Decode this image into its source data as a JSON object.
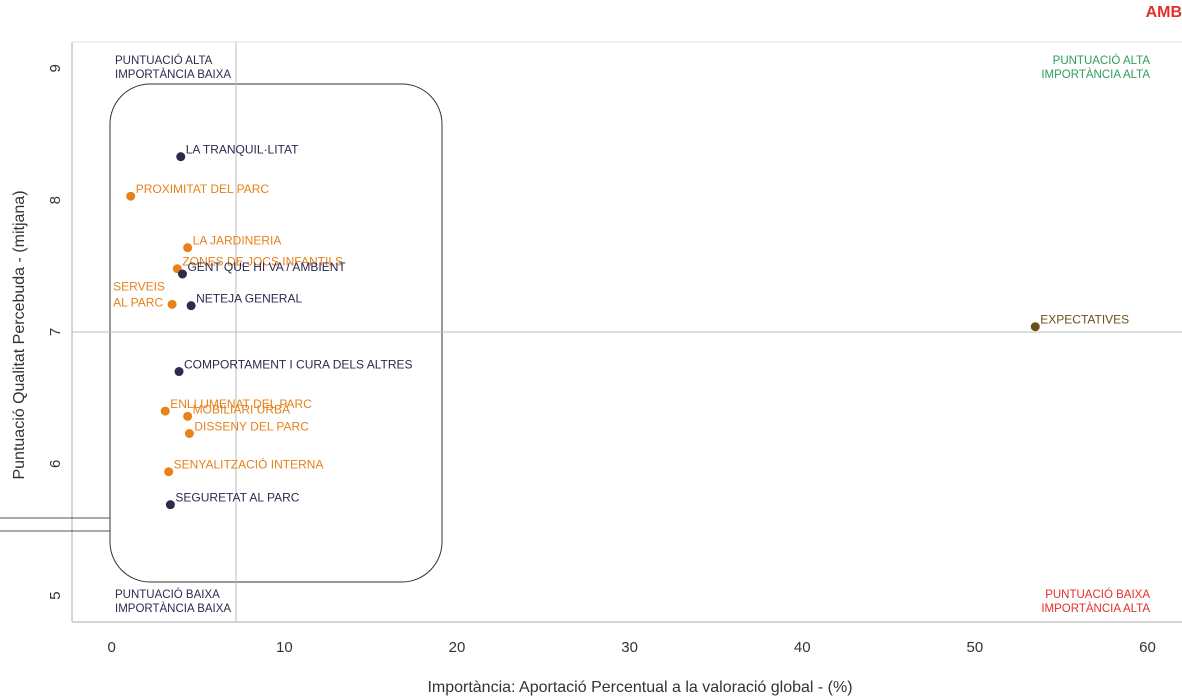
{
  "corner_title": "AMB",
  "colors": {
    "navy": "#2d2a4e",
    "orange": "#e8811a",
    "brown": "#6b4e1e",
    "green": "#2e9e5b",
    "red": "#e0302a",
    "axis": "#c8c8c8"
  },
  "chart_data": {
    "type": "scatter",
    "xlabel": "Importància: Aportació Percentual a la valoració global - (%)",
    "ylabel": "Puntuació Qualitat Percebuda - (mitjana)",
    "xlim": [
      -2.3,
      62
    ],
    "ylim": [
      4.8,
      9.2
    ],
    "xticks": [
      0,
      10,
      20,
      30,
      40,
      50,
      60
    ],
    "yticks": [
      5,
      6,
      7,
      8,
      9
    ],
    "grid": false,
    "reference_lines": {
      "x": 7.2,
      "y": 7.0
    },
    "quadrant_labels": [
      {
        "line1": "PUNTUACIÓ ALTA",
        "line2": "IMPORTÀNCIA BAIXA",
        "color": "navy",
        "position": "top-left"
      },
      {
        "line1": "PUNTUACIÓ ALTA",
        "line2": "IMPORTÀNCIA ALTA",
        "color": "green",
        "position": "top-right"
      },
      {
        "line1": "PUNTUACIÓ BAIXA",
        "line2": "IMPORTÀNCIA BAIXA",
        "color": "navy",
        "position": "bottom-left"
      },
      {
        "line1": "PUNTUACIÓ BAIXA",
        "line2": "IMPORTÀNCIA ALTA",
        "color": "red",
        "position": "bottom-right"
      }
    ],
    "points": [
      {
        "label": "LA TRANQUIL·LITAT",
        "x": 4.0,
        "y": 8.33,
        "color": "navy"
      },
      {
        "label": "PROXIMITAT DEL PARC",
        "x": 1.1,
        "y": 8.03,
        "color": "orange"
      },
      {
        "label": "LA JARDINERIA",
        "x": 4.4,
        "y": 7.64,
        "color": "orange"
      },
      {
        "label": "ZONES DE JOCS INFANTILS",
        "x": 3.8,
        "y": 7.48,
        "color": "orange"
      },
      {
        "label": "GENT QUE HI VA / AMBIENT",
        "x": 4.1,
        "y": 7.44,
        "color": "navy"
      },
      {
        "label": "SERVEIS\nAL PARC",
        "x": 3.5,
        "y": 7.21,
        "color": "orange",
        "label_side": "left"
      },
      {
        "label": "NETEJA GENERAL",
        "x": 4.6,
        "y": 7.2,
        "color": "navy"
      },
      {
        "label": "EXPECTATIVES",
        "x": 53.5,
        "y": 7.04,
        "color": "brown"
      },
      {
        "label": "COMPORTAMENT I CURA DELS ALTRES",
        "x": 3.9,
        "y": 6.7,
        "color": "navy"
      },
      {
        "label": "ENLLUMENAT DEL PARC",
        "x": 3.1,
        "y": 6.4,
        "color": "orange"
      },
      {
        "label": "MOBILIARI URBÀ",
        "x": 4.4,
        "y": 6.36,
        "color": "orange"
      },
      {
        "label": "DISSENY DEL PARC",
        "x": 4.5,
        "y": 6.23,
        "color": "orange"
      },
      {
        "label": "SENYALITZACIÓ INTERNA",
        "x": 3.3,
        "y": 5.94,
        "color": "orange"
      },
      {
        "label": "SEGURETAT AL PARC",
        "x": 3.4,
        "y": 5.69,
        "color": "navy"
      }
    ]
  }
}
